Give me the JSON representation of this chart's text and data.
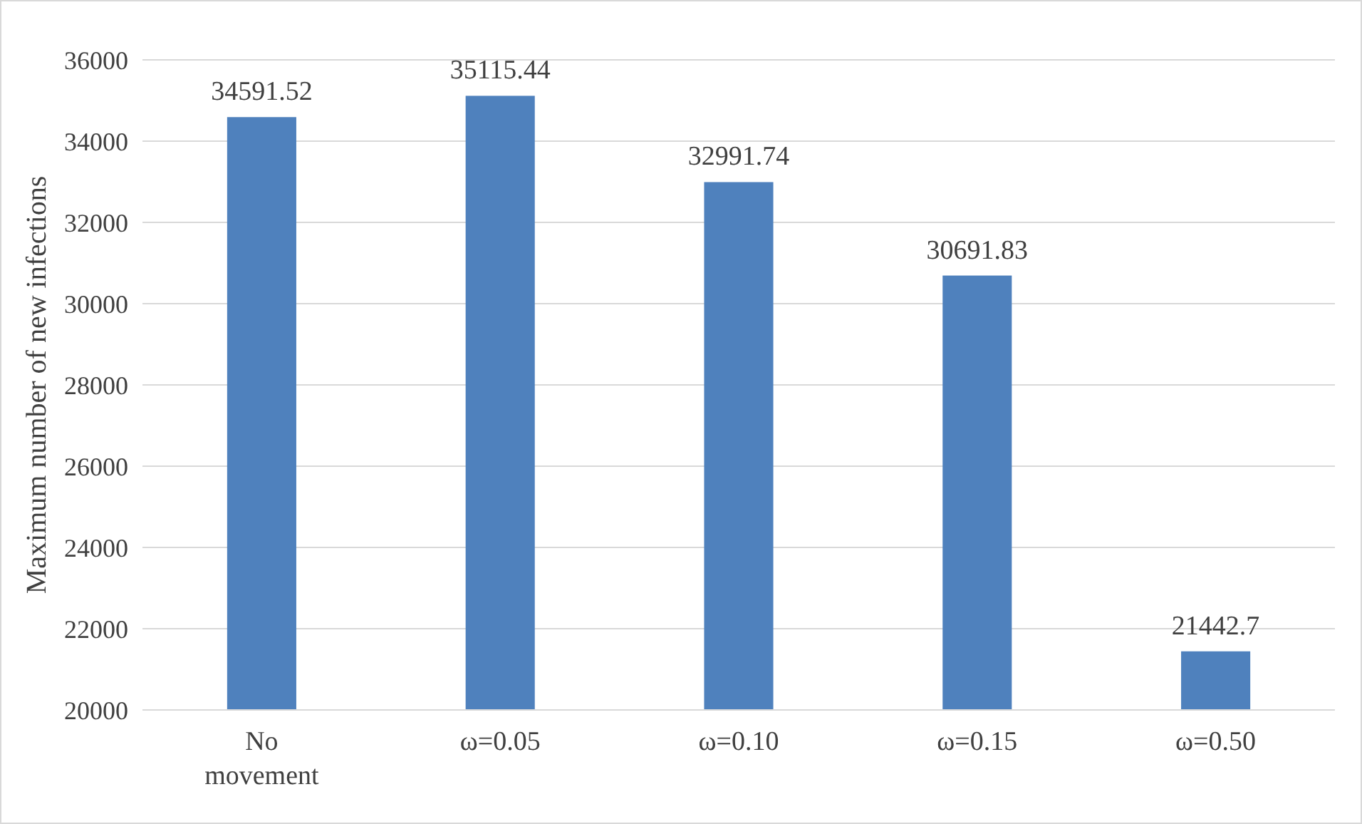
{
  "chart_data": {
    "type": "bar",
    "ylabel": "Maximum number of new infections",
    "categories": [
      "No movement",
      "ω=0.05",
      "ω=0.10",
      "ω=0.15",
      "ω=0.50"
    ],
    "values": [
      34591.52,
      35115.44,
      32991.74,
      30691.83,
      21442.7
    ],
    "color": "#4f81bd",
    "ylim": [
      20000,
      36000
    ],
    "yticks": [
      20000,
      22000,
      24000,
      26000,
      28000,
      30000,
      32000,
      34000,
      36000
    ],
    "grid": "y",
    "data_labels": true
  }
}
